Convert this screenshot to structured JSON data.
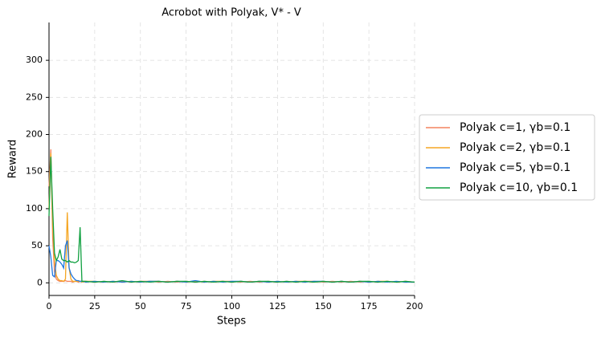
{
  "chart_data": {
    "type": "line",
    "title": "Acrobot with Polyak, V* - V",
    "x_label": "Steps",
    "y_label": "Reward",
    "x": [
      0,
      1,
      2,
      3,
      4,
      5,
      6,
      7,
      8,
      9,
      10,
      11,
      12,
      13,
      14,
      15,
      16,
      17,
      18,
      19,
      20,
      25,
      30,
      35,
      40,
      45,
      50,
      55,
      60,
      65,
      70,
      75,
      80,
      85,
      90,
      95,
      100,
      105,
      110,
      115,
      120,
      125,
      130,
      135,
      140,
      145,
      150,
      155,
      160,
      165,
      170,
      175,
      180,
      185,
      190,
      195,
      200
    ],
    "series": [
      {
        "name": "Polyak c=1, γb=0.1",
        "color": "#f4845f",
        "values": [
          130,
          180,
          60,
          15,
          5,
          3,
          2,
          2,
          2,
          3,
          2,
          2,
          2,
          1,
          2,
          2,
          1,
          2,
          2,
          1,
          2,
          1,
          2,
          1,
          2,
          1,
          2,
          2,
          1,
          2,
          1,
          2,
          1,
          2,
          1,
          2,
          2,
          1,
          2,
          1,
          2,
          1,
          2,
          1,
          2,
          2,
          1,
          2,
          1,
          2,
          1,
          2,
          1,
          2,
          1,
          2,
          1
        ]
      },
      {
        "name": "Polyak c=2, γb=0.1",
        "color": "#f5a623",
        "values": [
          100,
          175,
          80,
          30,
          10,
          5,
          3,
          3,
          2,
          5,
          95,
          20,
          5,
          2,
          2,
          2,
          2,
          2,
          1,
          2,
          2,
          2,
          1,
          2,
          1,
          2,
          1,
          2,
          2,
          1,
          2,
          1,
          2,
          1,
          2,
          2,
          1,
          2,
          1,
          2,
          1,
          2,
          1,
          2,
          2,
          1,
          2,
          1,
          2,
          1,
          2,
          1,
          2,
          2,
          1,
          2,
          1
        ]
      },
      {
        "name": "Polyak c=5, γb=0.1",
        "color": "#1f77e0",
        "values": [
          50,
          35,
          10,
          8,
          30,
          30,
          28,
          25,
          20,
          50,
          57,
          20,
          12,
          8,
          5,
          3,
          3,
          2,
          2,
          2,
          1,
          2,
          1,
          2,
          1,
          2,
          1,
          2,
          2,
          1,
          2,
          1,
          3,
          1,
          2,
          1,
          2,
          2,
          1,
          2,
          1,
          2,
          1,
          2,
          1,
          2,
          2,
          1,
          2,
          1,
          2,
          1,
          2,
          1,
          2,
          1,
          1
        ]
      },
      {
        "name": "Polyak c=10, γb=0.1",
        "color": "#10a040",
        "values": [
          90,
          170,
          100,
          40,
          30,
          35,
          45,
          32,
          30,
          30,
          28,
          30,
          28,
          28,
          27,
          28,
          30,
          75,
          2,
          2,
          2,
          1,
          2,
          1,
          3,
          1,
          2,
          1,
          2,
          1,
          2,
          2,
          1,
          2,
          1,
          2,
          1,
          2,
          1,
          2,
          2,
          1,
          2,
          1,
          2,
          1,
          2,
          1,
          2,
          1,
          2,
          2,
          1,
          2,
          1,
          2,
          1
        ]
      }
    ],
    "xlim": [
      0,
      200
    ],
    "xticks": [
      0,
      25,
      50,
      75,
      100,
      125,
      150,
      175,
      200
    ],
    "ylim": [
      -17,
      351
    ],
    "yticks": [
      0,
      50,
      100,
      150,
      200,
      250,
      300
    ],
    "grid": true,
    "legend": "right"
  }
}
